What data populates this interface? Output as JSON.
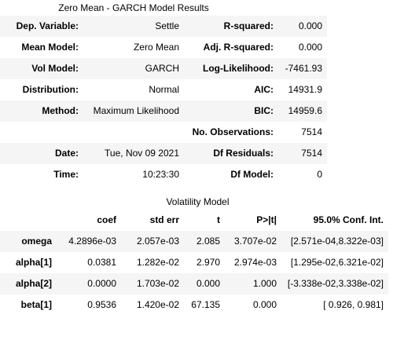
{
  "summary": {
    "caption": "Zero Mean - GARCH Model Results",
    "rows": [
      {
        "l_label": "Dep. Variable:",
        "l_value": "Settle",
        "r_label": "R-squared:",
        "r_value": "0.000"
      },
      {
        "l_label": "Mean Model:",
        "l_value": "Zero Mean",
        "r_label": "Adj. R-squared:",
        "r_value": "0.000"
      },
      {
        "l_label": "Vol Model:",
        "l_value": "GARCH",
        "r_label": "Log-Likelihood:",
        "r_value": "-7461.93"
      },
      {
        "l_label": "Distribution:",
        "l_value": "Normal",
        "r_label": "AIC:",
        "r_value": "14931.9"
      },
      {
        "l_label": "Method:",
        "l_value": "Maximum Likelihood",
        "r_label": "BIC:",
        "r_value": "14959.6"
      },
      {
        "l_label": "",
        "l_value": "",
        "r_label": "No. Observations:",
        "r_value": "7514"
      },
      {
        "l_label": "Date:",
        "l_value": "Tue, Nov 09 2021",
        "r_label": "Df Residuals:",
        "r_value": "7514"
      },
      {
        "l_label": "Time:",
        "l_value": "10:23:30",
        "r_label": "Df Model:",
        "r_value": "0"
      }
    ]
  },
  "volatility": {
    "caption": "Volatility Model",
    "headers": [
      "",
      "coef",
      "std err",
      "t",
      "P>|t|",
      "95.0% Conf. Int."
    ],
    "rows": [
      {
        "name": "omega",
        "coef": "4.2896e-03",
        "std_err": "2.057e-03",
        "t": "2.085",
        "p": "3.707e-02",
        "ci": "[2.571e-04,8.322e-03]"
      },
      {
        "name": "alpha[1]",
        "coef": "0.0381",
        "std_err": "1.282e-02",
        "t": "2.970",
        "p": "2.974e-03",
        "ci": "[1.295e-02,6.321e-02]"
      },
      {
        "name": "alpha[2]",
        "coef": "0.0000",
        "std_err": "1.703e-02",
        "t": "0.000",
        "p": "1.000",
        "ci": "[-3.338e-02,3.338e-02]"
      },
      {
        "name": "beta[1]",
        "coef": "0.9536",
        "std_err": "1.420e-02",
        "t": "67.135",
        "p": "0.000",
        "ci": "[ 0.926, 0.981]"
      }
    ]
  }
}
